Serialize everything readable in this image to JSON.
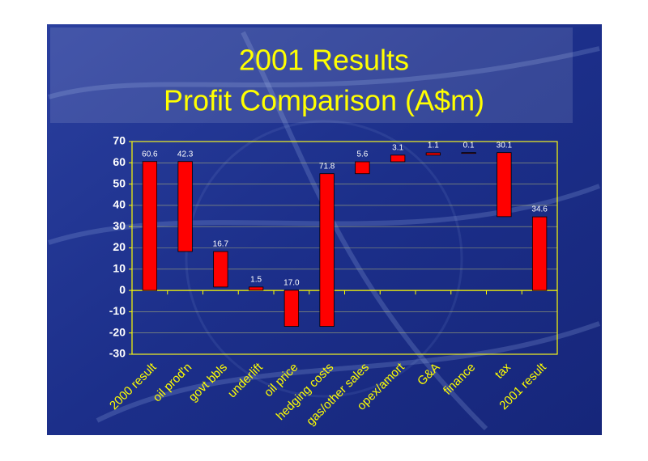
{
  "chart_data": {
    "type": "waterfall",
    "title": "2001 Results",
    "subtitle": "Profit Comparison (A$m)",
    "categories": [
      "2000 result",
      "oil prod'n",
      "govt bbls",
      "underlift",
      "oil price",
      "hedging costs",
      "gas/other sales",
      "opex/amort",
      "G&A",
      "finance",
      "tax",
      "2001 result"
    ],
    "values": [
      60.6,
      -42.3,
      -16.7,
      -1.5,
      -17.0,
      71.8,
      5.6,
      3.1,
      1.1,
      0.1,
      -30.1,
      34.6
    ],
    "value_labels": [
      "60.6",
      "42.3",
      "16.7",
      "1.5",
      "17.0",
      "71.8",
      "5.6",
      "3.1",
      "1.1",
      "0.1",
      "30.1",
      "34.6"
    ],
    "is_total": [
      true,
      false,
      false,
      false,
      false,
      false,
      false,
      false,
      false,
      false,
      false,
      true
    ],
    "color": "#ff0000",
    "ylim": [
      -30,
      70
    ],
    "yticks": [
      -30,
      -20,
      -10,
      0,
      10,
      20,
      30,
      40,
      50,
      60,
      70
    ],
    "grid": true
  }
}
